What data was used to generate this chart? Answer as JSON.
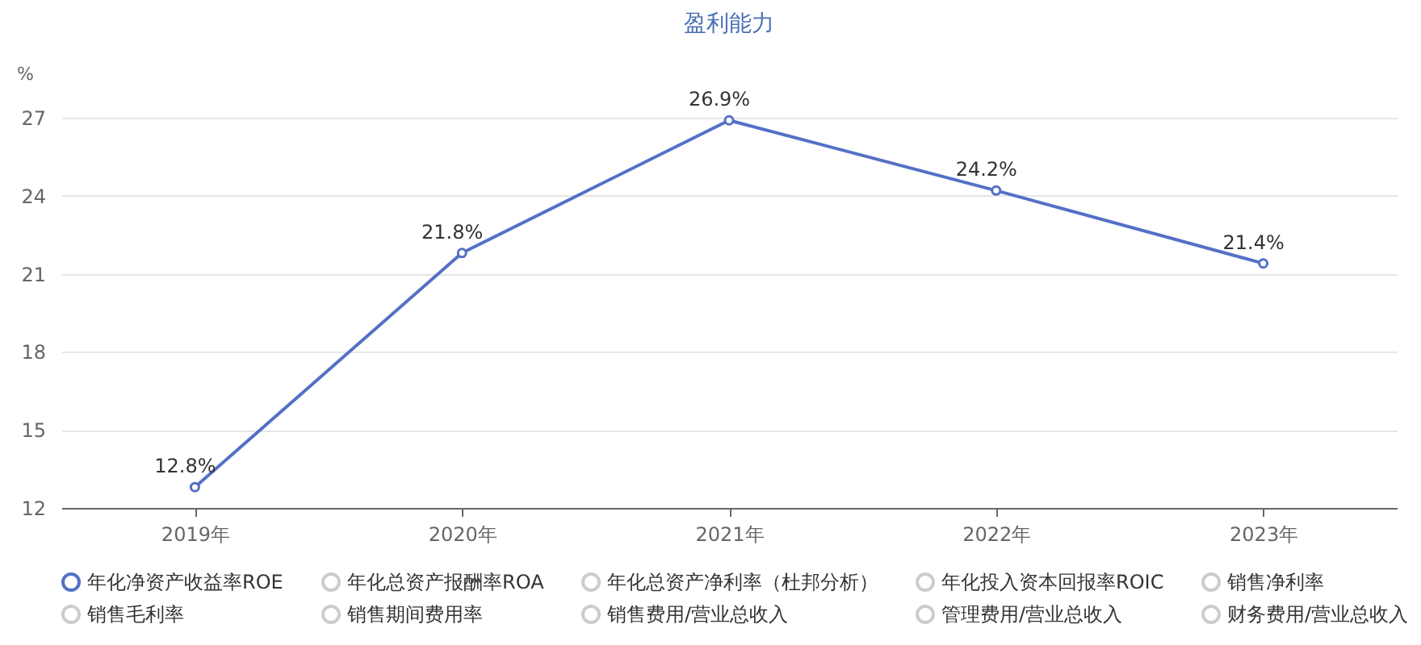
{
  "chart_data": {
    "type": "line",
    "title": "盈利能力",
    "ylabel": "%",
    "categories": [
      "2019年",
      "2020年",
      "2021年",
      "2022年",
      "2023年"
    ],
    "series": [
      {
        "name": "年化净资产收益率ROE",
        "color": "#5470c6",
        "values": [
          12.8,
          21.8,
          26.9,
          24.2,
          21.4
        ],
        "value_labels": [
          "12.8%",
          "21.8%",
          "26.9%",
          "24.2%",
          "21.4%"
        ]
      },
      {
        "name": "年化总资产报酬率ROA",
        "color": "#cccccc",
        "values": [
          null,
          null,
          null,
          null,
          null
        ]
      },
      {
        "name": "年化总资产净利率（杜邦分析）",
        "color": "#cccccc",
        "values": [
          null,
          null,
          null,
          null,
          null
        ]
      },
      {
        "name": "年化投入资本回报率ROIC",
        "color": "#cccccc",
        "values": [
          null,
          null,
          null,
          null,
          null
        ]
      },
      {
        "name": "销售净利率",
        "color": "#cccccc",
        "values": [
          null,
          null,
          null,
          null,
          null
        ]
      },
      {
        "name": "销售毛利率",
        "color": "#cccccc",
        "values": [
          null,
          null,
          null,
          null,
          null
        ]
      },
      {
        "name": "销售期间费用率",
        "color": "#cccccc",
        "values": [
          null,
          null,
          null,
          null,
          null
        ]
      },
      {
        "name": "销售费用/营业总收入",
        "color": "#cccccc",
        "values": [
          null,
          null,
          null,
          null,
          null
        ]
      },
      {
        "name": "管理费用/营业总收入",
        "color": "#cccccc",
        "values": [
          null,
          null,
          null,
          null,
          null
        ]
      },
      {
        "name": "财务费用/营业总收入",
        "color": "#cccccc",
        "values": [
          null,
          null,
          null,
          null,
          null
        ]
      }
    ],
    "ylim": [
      12,
      27
    ],
    "yticks": [
      12,
      15,
      18,
      21,
      24,
      27
    ],
    "grid": "y",
    "legend": "bottom",
    "marker": "circle",
    "line_style": "solid"
  }
}
